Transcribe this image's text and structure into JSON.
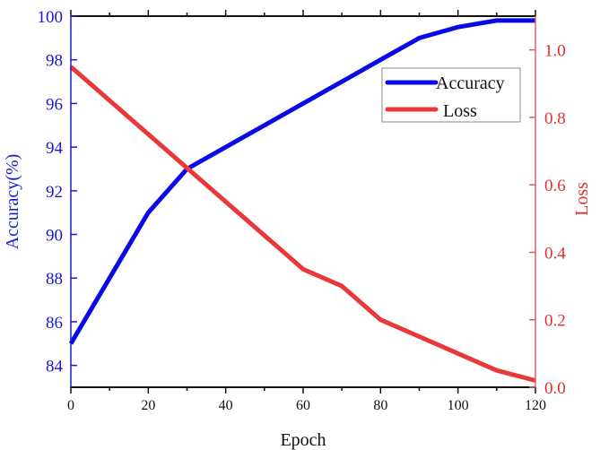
{
  "chart_data": {
    "type": "line",
    "title": "",
    "xlabel": "Epoch",
    "ylabel": "Accuracy(%)",
    "y2label": "Loss",
    "xlim": [
      0,
      120
    ],
    "ylim": [
      83,
      100
    ],
    "y2lim": [
      0,
      1.1
    ],
    "xticks": [
      0,
      20,
      40,
      60,
      80,
      100,
      120
    ],
    "xtick_labels": [
      "0",
      "20",
      "40",
      "60",
      "80",
      "100",
      "120"
    ],
    "yticks": [
      84,
      86,
      88,
      90,
      92,
      94,
      96,
      98,
      100
    ],
    "ytick_labels": [
      "84",
      "86",
      "88",
      "90",
      "92",
      "94",
      "96",
      "98",
      "100"
    ],
    "y2ticks": [
      0.0,
      0.2,
      0.4,
      0.6,
      0.8,
      1.0
    ],
    "y2tick_labels": [
      "0.0",
      "0.2",
      "0.4",
      "0.6",
      "0.8",
      "1.0"
    ],
    "grid": false,
    "legend_position": "top-right",
    "series": [
      {
        "name": "Accuracy",
        "axis": "left",
        "color": "#0a0ae6",
        "x": [
          0,
          20,
          30,
          40,
          50,
          60,
          70,
          80,
          90,
          100,
          110,
          120
        ],
        "y": [
          85,
          91,
          93,
          94,
          95,
          96,
          97,
          98,
          99,
          99.5,
          99.8,
          99.8
        ]
      },
      {
        "name": "Loss",
        "axis": "right",
        "color": "#e8383a",
        "x": [
          0,
          30,
          60,
          70,
          80,
          90,
          100,
          110,
          120
        ],
        "y": [
          0.95,
          0.65,
          0.35,
          0.3,
          0.2,
          0.15,
          0.1,
          0.05,
          0.02
        ]
      }
    ]
  },
  "colors": {
    "left_axis": "#1a1acc",
    "right_axis": "#e03030",
    "right_axis_line": "#d86060",
    "bottom_axis": "#111111"
  }
}
